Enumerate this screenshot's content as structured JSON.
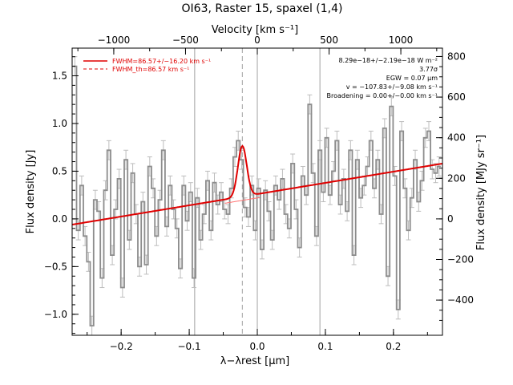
{
  "chart_data": {
    "type": "line",
    "title": "OI63, Raster 15, spaxel (1,4)",
    "xlabel": "λ−λrest [μm]",
    "ylabel": "Flux density [Jy]",
    "top_xlabel": "Velocity [km s⁻¹]",
    "right_ylabel": "Flux density [MJy sr⁻¹]",
    "xlim": [
      -0.272,
      0.272
    ],
    "ylim": [
      -1.22,
      1.79
    ],
    "xticks": [
      -0.2,
      -0.1,
      0.0,
      0.1,
      0.2
    ],
    "xtick_labels": [
      "−0.2",
      "−0.1",
      "0.0",
      "0.1",
      "0.2"
    ],
    "yticks": [
      -1.0,
      -0.5,
      0.0,
      0.5,
      1.0,
      1.5
    ],
    "ytick_labels": [
      "−1.0",
      "−0.5",
      "0.0",
      "0.5",
      "1.0",
      "1.5"
    ],
    "top_xticks": [
      -1000,
      -500,
      0,
      500,
      1000
    ],
    "top_xtick_labels": [
      "−1000",
      "−500",
      "0",
      "500",
      "1000"
    ],
    "right_yticks": [
      -400,
      -200,
      0,
      200,
      400,
      600,
      800
    ],
    "right_ytick_labels": [
      "−400",
      "−200",
      "0",
      "200",
      "400",
      "600",
      "800"
    ],
    "right_axis_factor": 470,
    "velocity_range": [
      -1290,
      1290
    ],
    "grid": false,
    "legend_position": "top-left",
    "colors": {
      "data": "#8c8c8c",
      "error": "#bdbdbd",
      "fit": "#e00000",
      "fit_lower": "#ff7070",
      "reference": "#a0a0a0"
    },
    "vertical_lines": [
      -0.092,
      0.0,
      0.092
    ],
    "dashed_vertical_line": -0.022,
    "legend": [
      {
        "label": "FWHM=86.57+/−16.20 km s⁻¹",
        "style": "solid"
      },
      {
        "label": "FWHM_th=86.57 km s⁻¹",
        "style": "dashed"
      }
    ],
    "annotations": [
      "8.29e−18+/−2.19e−18 W m⁻²",
      "3.77σ",
      "EGW = 0.07 μm",
      "v = −107.83+/−9.08 km s⁻¹",
      "Broadening = 0.00+/−0.00 km s⁻¹"
    ],
    "fit": {
      "continuum": {
        "x0": -0.272,
        "y0": -0.06,
        "x1": 0.272,
        "y1": 0.58
      },
      "gaussian": {
        "center": -0.022,
        "amplitude": 0.53,
        "sigma": 0.0065
      }
    },
    "series": [
      {
        "x": [
          -0.268,
          -0.263,
          -0.258,
          -0.253,
          -0.248,
          -0.243,
          -0.238,
          -0.233,
          -0.228,
          -0.223,
          -0.218,
          -0.213,
          -0.208,
          -0.203,
          -0.198,
          -0.193,
          -0.188,
          -0.183,
          -0.178,
          -0.173,
          -0.168,
          -0.163,
          -0.158,
          -0.153,
          -0.148,
          -0.143,
          -0.138,
          -0.133,
          -0.128,
          -0.123,
          -0.118,
          -0.113,
          -0.108,
          -0.103,
          -0.098,
          -0.093,
          -0.088,
          -0.083,
          -0.078,
          -0.073,
          -0.068,
          -0.063,
          -0.058,
          -0.053,
          -0.048,
          -0.043,
          -0.038,
          -0.033,
          -0.028,
          -0.023,
          -0.018,
          -0.013,
          -0.008,
          -0.003,
          0.002,
          0.007,
          0.012,
          0.017,
          0.022,
          0.027,
          0.032,
          0.037,
          0.042,
          0.047,
          0.052,
          0.057,
          0.062,
          0.067,
          0.072,
          0.077,
          0.082,
          0.087,
          0.092,
          0.097,
          0.102,
          0.107,
          0.112,
          0.117,
          0.122,
          0.127,
          0.132,
          0.137,
          0.142,
          0.147,
          0.152,
          0.157,
          0.162,
          0.167,
          0.172,
          0.177,
          0.182,
          0.187,
          0.192,
          0.197,
          0.202,
          0.207,
          0.212,
          0.217,
          0.222,
          0.227,
          0.232,
          0.237,
          0.242,
          0.247,
          0.252,
          0.257,
          0.262,
          0.267
        ],
        "y": [
          1.6,
          -0.12,
          0.35,
          -0.18,
          -0.45,
          -1.12,
          0.2,
          0.08,
          -0.62,
          0.3,
          0.72,
          -0.38,
          0.1,
          0.42,
          -0.72,
          0.62,
          -0.22,
          0.48,
          0.05,
          -0.5,
          0.18,
          -0.48,
          0.55,
          0.32,
          -0.18,
          0.2,
          0.72,
          -0.08,
          0.35,
          0.1,
          -0.1,
          -0.52,
          0.35,
          -0.02,
          0.28,
          -0.62,
          0.22,
          -0.22,
          0.05,
          0.4,
          -0.12,
          0.38,
          0.15,
          0.28,
          0.1,
          0.05,
          0.32,
          0.65,
          0.82,
          0.62,
          0.12,
          0.02,
          0.35,
          -0.12,
          0.32,
          -0.32,
          0.3,
          0.08,
          -0.22,
          0.35,
          0.2,
          0.42,
          0.05,
          -0.1,
          0.58,
          0.1,
          -0.3,
          0.45,
          0.25,
          1.2,
          0.48,
          -0.18,
          0.72,
          0.28,
          0.85,
          0.25,
          0.5,
          0.82,
          0.15,
          0.42,
          0.08,
          0.72,
          -0.38,
          0.62,
          0.22,
          0.35,
          0.55,
          0.82,
          0.32,
          0.62,
          0.05,
          0.95,
          -0.6,
          1.18,
          0.45,
          -0.95,
          0.92,
          0.32,
          -0.12,
          0.22,
          0.62,
          0.18,
          0.4,
          0.85,
          0.92,
          0.52,
          0.48,
          0.55
        ],
        "err": 0.1
      }
    ]
  }
}
